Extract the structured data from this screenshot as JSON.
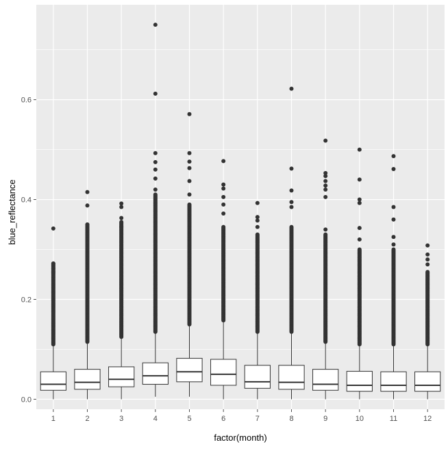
{
  "chart_data": {
    "type": "boxplot",
    "title": "",
    "xlabel": "factor(month)",
    "ylabel": "blue_reflectance",
    "ylim": [
      -0.02,
      0.79
    ],
    "y_ticks": [
      0.0,
      0.2,
      0.4,
      0.6
    ],
    "y_tick_labels": [
      "0.0",
      "0.2",
      "0.4",
      "0.6"
    ],
    "grid": true,
    "legend": "none",
    "colors": {
      "panel_bg": "#ebebeb",
      "grid": "#ffffff",
      "box_fill": "#ffffff",
      "box_line": "#333333",
      "outlier": "#333333",
      "axis_text": "#4d4d4d",
      "axis_title": "#000000"
    },
    "categories": [
      "1",
      "2",
      "3",
      "4",
      "5",
      "6",
      "7",
      "8",
      "9",
      "10",
      "11",
      "12"
    ],
    "boxes": [
      {
        "month": "1",
        "lower_whisker": 0.0,
        "q1": 0.018,
        "median": 0.03,
        "q3": 0.055,
        "upper_whisker": 0.11,
        "outlier_range": [
          0.11,
          0.272
        ],
        "outliers": [
          0.342,
          0.272,
          0.262,
          0.255
        ]
      },
      {
        "month": "2",
        "lower_whisker": 0.0,
        "q1": 0.02,
        "median": 0.034,
        "q3": 0.06,
        "upper_whisker": 0.115,
        "outlier_range": [
          0.115,
          0.35
        ],
        "outliers": [
          0.415,
          0.388,
          0.35,
          0.34,
          0.33
        ]
      },
      {
        "month": "3",
        "lower_whisker": 0.0,
        "q1": 0.025,
        "median": 0.04,
        "q3": 0.065,
        "upper_whisker": 0.125,
        "outlier_range": [
          0.125,
          0.355
        ],
        "outliers": [
          0.392,
          0.385,
          0.363,
          0.345
        ]
      },
      {
        "month": "4",
        "lower_whisker": 0.005,
        "q1": 0.03,
        "median": 0.047,
        "q3": 0.073,
        "upper_whisker": 0.135,
        "outlier_range": [
          0.135,
          0.41
        ],
        "outliers": [
          0.75,
          0.612,
          0.493,
          0.475,
          0.46,
          0.442,
          0.42
        ]
      },
      {
        "month": "5",
        "lower_whisker": 0.005,
        "q1": 0.035,
        "median": 0.055,
        "q3": 0.082,
        "upper_whisker": 0.15,
        "outlier_range": [
          0.15,
          0.39
        ],
        "outliers": [
          0.571,
          0.493,
          0.476,
          0.463,
          0.437,
          0.41
        ]
      },
      {
        "month": "6",
        "lower_whisker": 0.0,
        "q1": 0.028,
        "median": 0.05,
        "q3": 0.08,
        "upper_whisker": 0.158,
        "outlier_range": [
          0.158,
          0.345
        ],
        "outliers": [
          0.477,
          0.43,
          0.422,
          0.405,
          0.39,
          0.372
        ]
      },
      {
        "month": "7",
        "lower_whisker": 0.0,
        "q1": 0.022,
        "median": 0.035,
        "q3": 0.068,
        "upper_whisker": 0.135,
        "outlier_range": [
          0.135,
          0.33
        ],
        "outliers": [
          0.393,
          0.365,
          0.358,
          0.345
        ]
      },
      {
        "month": "8",
        "lower_whisker": 0.0,
        "q1": 0.02,
        "median": 0.034,
        "q3": 0.068,
        "upper_whisker": 0.135,
        "outlier_range": [
          0.135,
          0.345
        ],
        "outliers": [
          0.622,
          0.462,
          0.418,
          0.395,
          0.385
        ]
      },
      {
        "month": "9",
        "lower_whisker": 0.0,
        "q1": 0.018,
        "median": 0.03,
        "q3": 0.06,
        "upper_whisker": 0.115,
        "outlier_range": [
          0.115,
          0.33
        ],
        "outliers": [
          0.518,
          0.453,
          0.447,
          0.437,
          0.428,
          0.42,
          0.405,
          0.34
        ]
      },
      {
        "month": "10",
        "lower_whisker": 0.0,
        "q1": 0.016,
        "median": 0.028,
        "q3": 0.056,
        "upper_whisker": 0.11,
        "outlier_range": [
          0.11,
          0.3
        ],
        "outliers": [
          0.5,
          0.44,
          0.4,
          0.393,
          0.343,
          0.32
        ]
      },
      {
        "month": "11",
        "lower_whisker": 0.0,
        "q1": 0.016,
        "median": 0.028,
        "q3": 0.055,
        "upper_whisker": 0.11,
        "outlier_range": [
          0.11,
          0.3
        ],
        "outliers": [
          0.487,
          0.461,
          0.385,
          0.36,
          0.325,
          0.31
        ]
      },
      {
        "month": "12",
        "lower_whisker": 0.0,
        "q1": 0.016,
        "median": 0.028,
        "q3": 0.055,
        "upper_whisker": 0.11,
        "outlier_range": [
          0.11,
          0.255
        ],
        "outliers": [
          0.308,
          0.29,
          0.28,
          0.27
        ]
      }
    ]
  }
}
